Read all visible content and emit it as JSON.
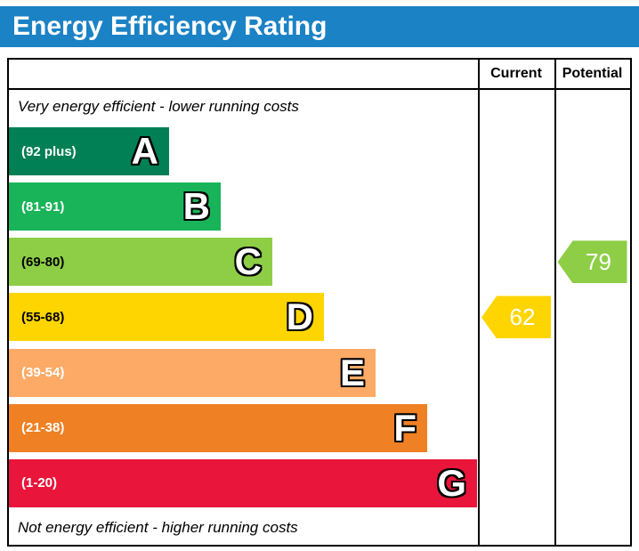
{
  "title": "Energy Efficiency Rating",
  "colors": {
    "header_bg": "#1b82c5",
    "header_text": "#ffffff"
  },
  "columns": {
    "current": "Current",
    "potential": "Potential"
  },
  "notes": {
    "top": "Very energy efficient - lower running costs",
    "bottom": "Not energy efficient - higher running costs"
  },
  "bands": [
    {
      "letter": "A",
      "range": "(92 plus)",
      "color": "#008054",
      "text_color": "#ffffff"
    },
    {
      "letter": "B",
      "range": "(81-91)",
      "color": "#19b459",
      "text_color": "#ffffff"
    },
    {
      "letter": "C",
      "range": "(69-80)",
      "color": "#8dce46",
      "text_color": "#000000"
    },
    {
      "letter": "D",
      "range": "(55-68)",
      "color": "#ffd500",
      "text_color": "#000000"
    },
    {
      "letter": "E",
      "range": "(39-54)",
      "color": "#fcaa65",
      "text_color": "#ffffff"
    },
    {
      "letter": "F",
      "range": "(21-38)",
      "color": "#ef8023",
      "text_color": "#ffffff"
    },
    {
      "letter": "G",
      "range": "(1-20)",
      "color": "#e9153b",
      "text_color": "#ffffff"
    }
  ],
  "current": {
    "value": "62",
    "color": "#ffd500"
  },
  "potential": {
    "value": "79",
    "color": "#8dce46"
  },
  "chart_data": {
    "type": "bar",
    "orientation": "horizontal",
    "title": "Energy Efficiency Rating",
    "categories": [
      "A",
      "B",
      "C",
      "D",
      "E",
      "F",
      "G"
    ],
    "band_ranges": [
      "92 plus",
      "81-91",
      "69-80",
      "55-68",
      "39-54",
      "21-38",
      "1-20"
    ],
    "band_colors": [
      "#008054",
      "#19b459",
      "#8dce46",
      "#ffd500",
      "#fcaa65",
      "#ef8023",
      "#e9153b"
    ],
    "markers": [
      {
        "name": "Current",
        "value": 62,
        "band": "D",
        "color": "#ffd500"
      },
      {
        "name": "Potential",
        "value": 79,
        "band": "C",
        "color": "#8dce46"
      }
    ],
    "annotations": [
      "Very energy efficient - lower running costs",
      "Not energy efficient - higher running costs"
    ],
    "legend_position": "none",
    "grid": false
  }
}
